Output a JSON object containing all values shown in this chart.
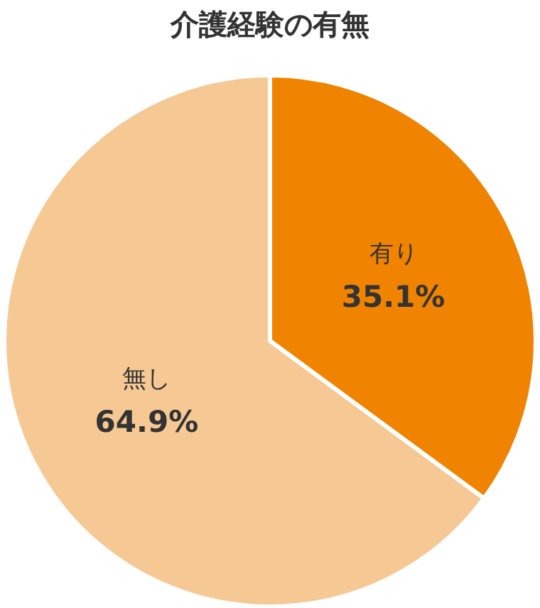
{
  "chart_data": {
    "type": "pie",
    "title": "介護経験の有無",
    "categories": [
      "有り",
      "無し"
    ],
    "values": [
      35.1,
      64.9
    ],
    "colors": [
      "#f08300",
      "#f5c894"
    ],
    "value_labels": [
      "35.1%",
      "64.9%"
    ],
    "legend": false
  }
}
